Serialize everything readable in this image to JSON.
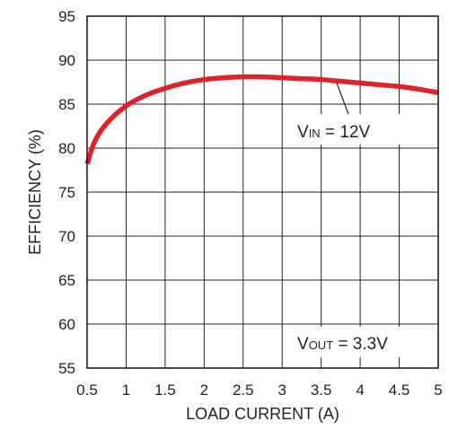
{
  "chart_data": {
    "type": "line",
    "xlabel": "LOAD CURRENT (A)",
    "ylabel": "EFFICIENCY (%)",
    "xlim": [
      0.5,
      5
    ],
    "ylim": [
      55,
      95
    ],
    "x_ticks": [
      "0.5",
      "1",
      "1.5",
      "2",
      "2.5",
      "3",
      "3.5",
      "4",
      "4.5",
      "5"
    ],
    "y_ticks": [
      "55",
      "60",
      "65",
      "70",
      "75",
      "80",
      "85",
      "90",
      "95"
    ],
    "grid": true,
    "series": [
      {
        "color": "#e0222b",
        "x": [
          0.5,
          0.6,
          0.75,
          1.0,
          1.25,
          1.5,
          1.75,
          2.0,
          2.25,
          2.5,
          2.75,
          3.0,
          3.25,
          3.5,
          3.75,
          4.0,
          4.25,
          4.5,
          4.75,
          5.0
        ],
        "y": [
          78.2,
          80.8,
          82.8,
          84.8,
          86.0,
          86.8,
          87.4,
          87.8,
          88.0,
          88.1,
          88.1,
          88.0,
          87.9,
          87.8,
          87.6,
          87.4,
          87.2,
          87.0,
          86.7,
          86.3
        ]
      }
    ],
    "annotations": [
      {
        "main": "V",
        "sub": "IN",
        "rest": " = 12V",
        "x": 3.7,
        "y": 87.4
      },
      {
        "main": "V",
        "sub": "OUT",
        "rest": " = 3.3V"
      }
    ]
  }
}
